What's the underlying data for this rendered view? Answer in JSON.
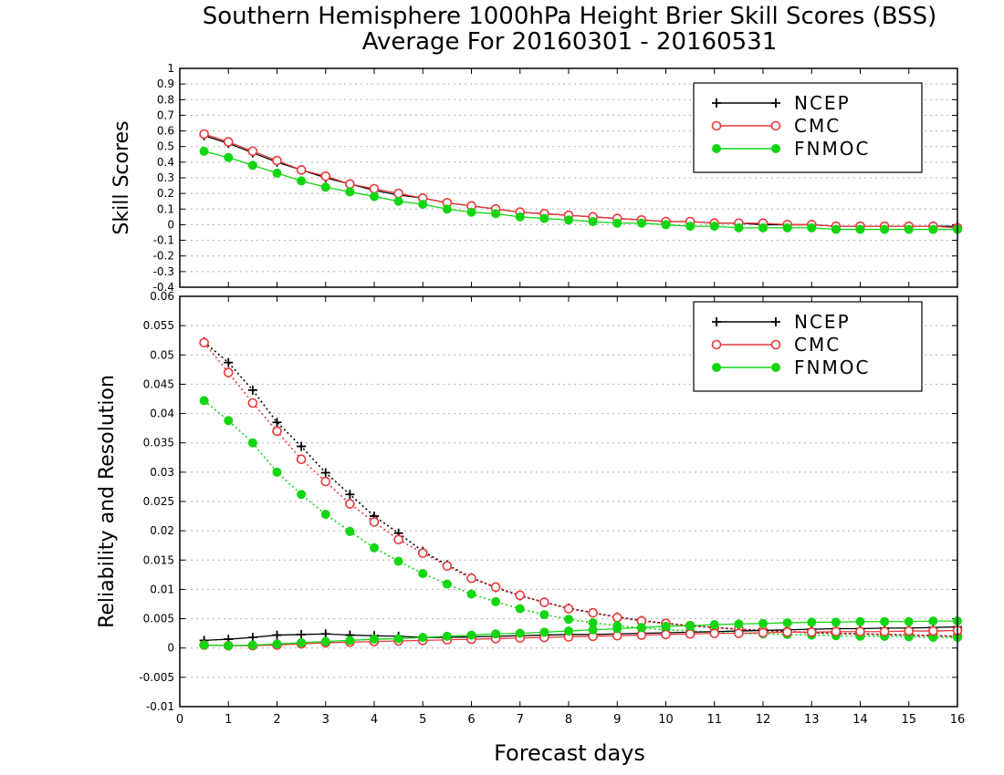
{
  "title_line1": "Southern Hemisphere 1000hPa Height Brier Skill Scores (BSS)",
  "title_line2": "Average For 20160301 - 20160531",
  "xlabel": "Forecast days",
  "colors": {
    "NCEP": "#000000",
    "CMC": "#e8393b",
    "FNMOC": "#11d611"
  },
  "chart_data": [
    {
      "type": "line",
      "panel": "top",
      "ylabel": "Skill Scores",
      "xlim": [
        0,
        16
      ],
      "ylim": [
        -0.4,
        1
      ],
      "x_ticks": [
        0,
        1,
        2,
        3,
        4,
        5,
        6,
        7,
        8,
        9,
        10,
        11,
        12,
        13,
        14,
        15,
        16
      ],
      "y_ticks": [
        -0.4,
        -0.3,
        -0.2,
        -0.1,
        0,
        0.1,
        0.2,
        0.3,
        0.4,
        0.5,
        0.6,
        0.7,
        0.8,
        0.9,
        1
      ],
      "y_tick_labels": [
        "-0.4",
        "-0.3",
        "-0.2",
        "-0.1",
        "0",
        "0.1",
        "0.2",
        "0.3",
        "0.4",
        "0.5",
        "0.6",
        "0.7",
        "0.8",
        "0.9",
        "1"
      ],
      "grid": true,
      "legend_position": "top-right",
      "x": [
        0.5,
        1,
        1.5,
        2,
        2.5,
        3,
        3.5,
        4,
        4.5,
        5,
        5.5,
        6,
        6.5,
        7,
        7.5,
        8,
        8.5,
        9,
        9.5,
        10,
        10.5,
        11,
        11.5,
        12,
        12.5,
        13,
        13.5,
        14,
        14.5,
        15,
        15.5,
        16
      ],
      "series": [
        {
          "name": "NCEP",
          "marker": "plus",
          "style": "solid",
          "values": [
            0.57,
            0.52,
            0.46,
            0.4,
            0.35,
            0.3,
            0.26,
            0.22,
            0.19,
            0.17,
            0.14,
            0.12,
            0.1,
            0.08,
            0.07,
            0.06,
            0.05,
            0.04,
            0.03,
            0.02,
            0.02,
            0.01,
            0.01,
            0.0,
            0.0,
            0.0,
            -0.01,
            -0.01,
            -0.01,
            -0.01,
            -0.01,
            -0.01
          ]
        },
        {
          "name": "CMC",
          "marker": "open-circle",
          "style": "solid",
          "values": [
            0.58,
            0.53,
            0.47,
            0.41,
            0.35,
            0.31,
            0.26,
            0.23,
            0.2,
            0.17,
            0.14,
            0.12,
            0.1,
            0.08,
            0.07,
            0.06,
            0.05,
            0.04,
            0.03,
            0.02,
            0.02,
            0.01,
            0.01,
            0.01,
            0.0,
            0.0,
            -0.01,
            -0.01,
            -0.01,
            -0.01,
            -0.01,
            -0.02
          ]
        },
        {
          "name": "FNMOC",
          "marker": "filled-circle",
          "style": "solid",
          "values": [
            0.47,
            0.43,
            0.38,
            0.33,
            0.28,
            0.24,
            0.21,
            0.18,
            0.15,
            0.13,
            0.1,
            0.08,
            0.07,
            0.05,
            0.04,
            0.03,
            0.02,
            0.01,
            0.01,
            0.0,
            -0.01,
            -0.01,
            -0.02,
            -0.02,
            -0.02,
            -0.02,
            -0.03,
            -0.03,
            -0.03,
            -0.03,
            -0.03,
            -0.03
          ]
        }
      ]
    },
    {
      "type": "line",
      "panel": "bottom",
      "ylabel": "Reliability and Resolution",
      "xlim": [
        0,
        16
      ],
      "ylim": [
        -0.01,
        0.06
      ],
      "x_ticks": [
        0,
        1,
        2,
        3,
        4,
        5,
        6,
        7,
        8,
        9,
        10,
        11,
        12,
        13,
        14,
        15,
        16
      ],
      "y_ticks": [
        -0.01,
        -0.005,
        0,
        0.005,
        0.01,
        0.015,
        0.02,
        0.025,
        0.03,
        0.035,
        0.04,
        0.045,
        0.05,
        0.055,
        0.06
      ],
      "y_tick_labels": [
        "-0.01",
        "-0.005",
        "0",
        "0.005",
        "0.01",
        "0.015",
        "0.02",
        "0.025",
        "0.03",
        "0.035",
        "0.04",
        "0.045",
        "0.05",
        "0.055",
        "0.06"
      ],
      "grid": true,
      "legend_position": "top-right",
      "x": [
        0.5,
        1,
        1.5,
        2,
        2.5,
        3,
        3.5,
        4,
        4.5,
        5,
        5.5,
        6,
        6.5,
        7,
        7.5,
        8,
        8.5,
        9,
        9.5,
        10,
        10.5,
        11,
        11.5,
        12,
        12.5,
        13,
        13.5,
        14,
        14.5,
        15,
        15.5,
        16
      ],
      "series": [
        {
          "name": "NCEP",
          "group": "resolution",
          "marker": "plus",
          "style": "dotted",
          "values": [
            0.0522,
            0.0487,
            0.044,
            0.0385,
            0.0344,
            0.0299,
            0.0262,
            0.0225,
            0.0196,
            0.0165,
            0.0142,
            0.012,
            0.0103,
            0.0089,
            0.0078,
            0.0068,
            0.006,
            0.0053,
            0.0047,
            0.0042,
            0.0038,
            0.0035,
            0.0032,
            0.003,
            0.0028,
            0.0026,
            0.0025,
            0.0024,
            0.0023,
            0.0022,
            0.0021,
            0.002
          ]
        },
        {
          "name": "CMC",
          "group": "resolution",
          "marker": "open-circle",
          "style": "dotted",
          "values": [
            0.0521,
            0.047,
            0.0418,
            0.037,
            0.0322,
            0.0284,
            0.0246,
            0.0215,
            0.0185,
            0.0162,
            0.014,
            0.0119,
            0.0104,
            0.009,
            0.0078,
            0.0067,
            0.006,
            0.0052,
            0.0046,
            0.0042,
            0.0038,
            0.0035,
            0.0032,
            0.003,
            0.0028,
            0.0027,
            0.0025,
            0.0024,
            0.0023,
            0.0022,
            0.0021,
            0.002
          ]
        },
        {
          "name": "FNMOC",
          "group": "resolution",
          "marker": "filled-circle",
          "style": "dotted",
          "values": [
            0.0422,
            0.0388,
            0.035,
            0.03,
            0.0262,
            0.0228,
            0.0199,
            0.0171,
            0.0148,
            0.0127,
            0.0109,
            0.0092,
            0.0079,
            0.0067,
            0.0057,
            0.0049,
            0.0043,
            0.0038,
            0.0034,
            0.0031,
            0.0029,
            0.0027,
            0.0025,
            0.0024,
            0.0023,
            0.0022,
            0.0021,
            0.002,
            0.002,
            0.0019,
            0.0018,
            0.0018
          ]
        },
        {
          "name": "NCEP",
          "group": "reliability",
          "marker": "plus",
          "style": "solid",
          "values": [
            0.0013,
            0.0015,
            0.0018,
            0.0022,
            0.0023,
            0.0024,
            0.0022,
            0.0021,
            0.002,
            0.0018,
            0.0018,
            0.0019,
            0.002,
            0.0021,
            0.0022,
            0.0023,
            0.0023,
            0.0024,
            0.0025,
            0.0026,
            0.0027,
            0.0028,
            0.0029,
            0.003,
            0.0031,
            0.0032,
            0.0033,
            0.0033,
            0.0034,
            0.0034,
            0.0035,
            0.0036
          ]
        },
        {
          "name": "CMC",
          "group": "reliability",
          "marker": "open-circle",
          "style": "solid",
          "values": [
            0.0005,
            0.0004,
            0.0004,
            0.0005,
            0.0007,
            0.0009,
            0.001,
            0.0011,
            0.0012,
            0.0013,
            0.0014,
            0.0015,
            0.0016,
            0.0017,
            0.0018,
            0.0019,
            0.002,
            0.0021,
            0.0022,
            0.0023,
            0.0024,
            0.0025,
            0.0025,
            0.0026,
            0.0027,
            0.0027,
            0.0028,
            0.0028,
            0.0028,
            0.0029,
            0.0029,
            0.003
          ]
        },
        {
          "name": "FNMOC",
          "group": "reliability",
          "marker": "filled-circle",
          "style": "solid",
          "values": [
            0.0005,
            0.0004,
            0.0005,
            0.0007,
            0.0009,
            0.0011,
            0.0013,
            0.0015,
            0.0016,
            0.0018,
            0.002,
            0.0022,
            0.0024,
            0.0025,
            0.0027,
            0.0029,
            0.0031,
            0.0033,
            0.0035,
            0.0037,
            0.0038,
            0.004,
            0.0041,
            0.0042,
            0.0043,
            0.0044,
            0.0044,
            0.0045,
            0.0045,
            0.0045,
            0.0046,
            0.0046
          ]
        }
      ]
    }
  ]
}
